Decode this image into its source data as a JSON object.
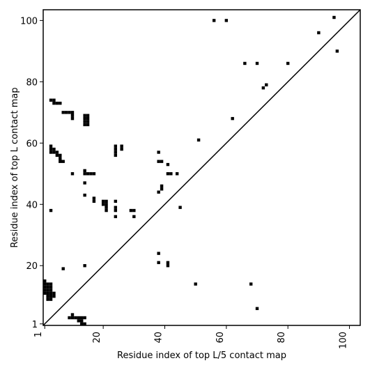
{
  "chart_data": {
    "type": "heatmap",
    "title": "",
    "xlabel": "Residue index of top L/5 contact map",
    "ylabel": "Residue index of top L contact map",
    "xlim": [
      0.5,
      103.5
    ],
    "ylim": [
      0.5,
      103.5
    ],
    "xticks": [
      1,
      20,
      40,
      60,
      80,
      100
    ],
    "yticks": [
      1,
      20,
      40,
      60,
      80,
      100
    ],
    "xtick_labels": [
      "1",
      "20",
      "40",
      "60",
      "80",
      "100"
    ],
    "ytick_labels": [
      "1",
      "20",
      "40",
      "60",
      "80",
      "100"
    ],
    "xtick_rotation": 270,
    "diagonal": true,
    "cell_color": "#000000",
    "background_color": "#ffffff",
    "points": [
      [
        1,
        15
      ],
      [
        1,
        14
      ],
      [
        1,
        13
      ],
      [
        1,
        12
      ],
      [
        1,
        11
      ],
      [
        2,
        14
      ],
      [
        2,
        13
      ],
      [
        2,
        12
      ],
      [
        2,
        11
      ],
      [
        2,
        10
      ],
      [
        2,
        9
      ],
      [
        3,
        14
      ],
      [
        3,
        13
      ],
      [
        3,
        12
      ],
      [
        3,
        11
      ],
      [
        3,
        10
      ],
      [
        3,
        9
      ],
      [
        4,
        11
      ],
      [
        4,
        10
      ],
      [
        9,
        3
      ],
      [
        10,
        3
      ],
      [
        10,
        4
      ],
      [
        11,
        3
      ],
      [
        12,
        3
      ],
      [
        12,
        2
      ],
      [
        13,
        3
      ],
      [
        13,
        2
      ],
      [
        13,
        1
      ],
      [
        14,
        3
      ],
      [
        14,
        1
      ],
      [
        7,
        19
      ],
      [
        14,
        20
      ],
      [
        3,
        38
      ],
      [
        3,
        57
      ],
      [
        3,
        58
      ],
      [
        3,
        59
      ],
      [
        4,
        57
      ],
      [
        4,
        58
      ],
      [
        5,
        57
      ],
      [
        5,
        56
      ],
      [
        6,
        56
      ],
      [
        6,
        55
      ],
      [
        6,
        54
      ],
      [
        7,
        54
      ],
      [
        10,
        50
      ],
      [
        14,
        51
      ],
      [
        14,
        50
      ],
      [
        15,
        50
      ],
      [
        16,
        50
      ],
      [
        17,
        50
      ],
      [
        14,
        47
      ],
      [
        14,
        43
      ],
      [
        17,
        42
      ],
      [
        17,
        41
      ],
      [
        20,
        41
      ],
      [
        20,
        40
      ],
      [
        21,
        41
      ],
      [
        21,
        40
      ],
      [
        21,
        39
      ],
      [
        21,
        38
      ],
      [
        24,
        41
      ],
      [
        24,
        39
      ],
      [
        24,
        38
      ],
      [
        24,
        36
      ],
      [
        29,
        38
      ],
      [
        30,
        38
      ],
      [
        30,
        36
      ],
      [
        3,
        74
      ],
      [
        4,
        74
      ],
      [
        4,
        73
      ],
      [
        5,
        73
      ],
      [
        6,
        73
      ],
      [
        7,
        70
      ],
      [
        8,
        70
      ],
      [
        9,
        70
      ],
      [
        10,
        70
      ],
      [
        10,
        69
      ],
      [
        10,
        68
      ],
      [
        14,
        69
      ],
      [
        14,
        68
      ],
      [
        14,
        67
      ],
      [
        14,
        66
      ],
      [
        15,
        69
      ],
      [
        15,
        68
      ],
      [
        15,
        67
      ],
      [
        15,
        66
      ],
      [
        24,
        59
      ],
      [
        24,
        58
      ],
      [
        24,
        57
      ],
      [
        24,
        56
      ],
      [
        26,
        59
      ],
      [
        26,
        58
      ],
      [
        38,
        57
      ],
      [
        38,
        54
      ],
      [
        39,
        54
      ],
      [
        41,
        53
      ],
      [
        41,
        50
      ],
      [
        42,
        50
      ],
      [
        44,
        50
      ],
      [
        39,
        46
      ],
      [
        39,
        45
      ],
      [
        38,
        44
      ],
      [
        45,
        39
      ],
      [
        38,
        24
      ],
      [
        38,
        21
      ],
      [
        41,
        21
      ],
      [
        41,
        20
      ],
      [
        50,
        14
      ],
      [
        68,
        14
      ],
      [
        70,
        6
      ],
      [
        51,
        61
      ],
      [
        56,
        100
      ],
      [
        60,
        100
      ],
      [
        62,
        68
      ],
      [
        66,
        86
      ],
      [
        70,
        86
      ],
      [
        72,
        78
      ],
      [
        73,
        79
      ],
      [
        80,
        86
      ],
      [
        90,
        96
      ],
      [
        95,
        101
      ],
      [
        96,
        90
      ]
    ]
  }
}
